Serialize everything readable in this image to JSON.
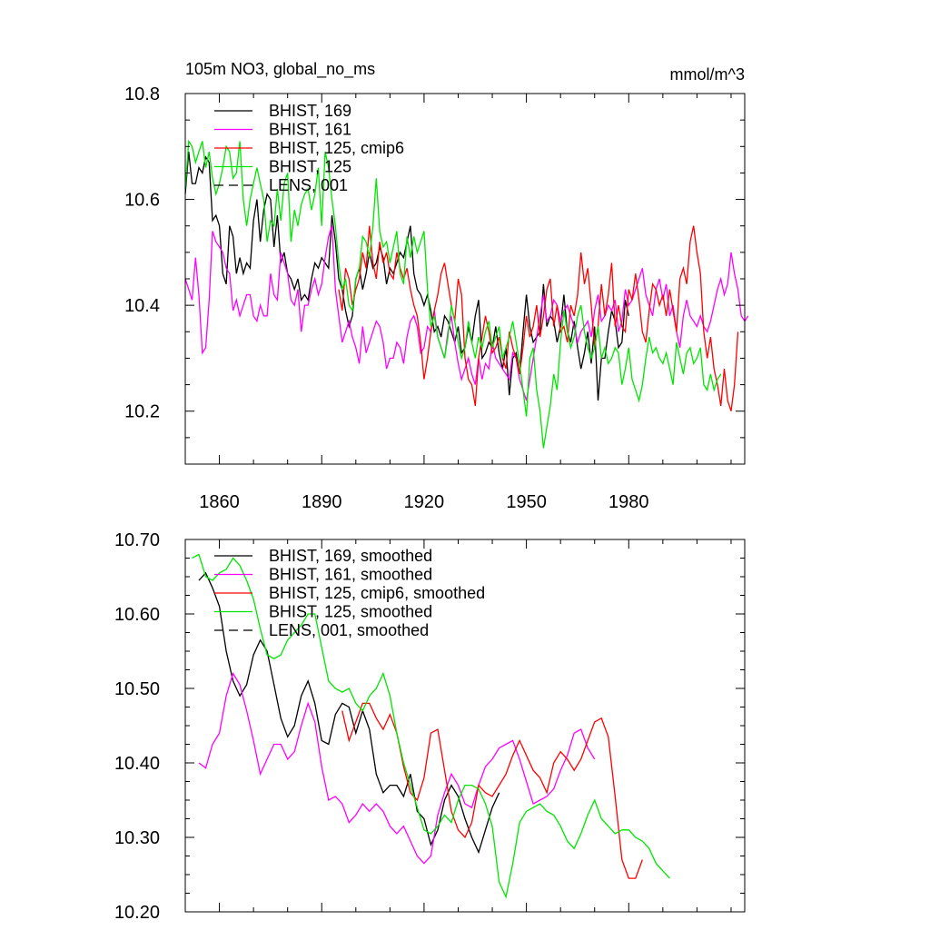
{
  "chart_data": [
    {
      "type": "line",
      "title": "105m NO3, global_no_ms",
      "units": "mmol/m^3",
      "xlim": [
        1850,
        2014
      ],
      "ylim": [
        10.1,
        10.8
      ],
      "xticks": [
        1860,
        1890,
        1920,
        1950,
        1980
      ],
      "xtick_labels": [
        "1860",
        "1890",
        "1920",
        "1950",
        "1980"
      ],
      "yticks": [
        10.2,
        10.4,
        10.6,
        10.8
      ],
      "ytick_labels": [
        "10.2",
        "10.4",
        "10.6",
        "10.8"
      ],
      "legend": [
        {
          "label": "BHIST, 169",
          "color": "#000000",
          "dash": false
        },
        {
          "label": "BHIST, 161",
          "color": "#ff00ff",
          "dash": false
        },
        {
          "label": "BHIST, 125, cmip6",
          "color": "#ff0000",
          "dash": false
        },
        {
          "label": "BHIST, 125",
          "color": "#00e600",
          "dash": false
        },
        {
          "label": "LENS, 001",
          "color": "#000000",
          "dash": true
        }
      ],
      "series": [
        {
          "name": "BHIST, 169",
          "color": "#000000",
          "x_start": 1850,
          "step": 1,
          "values": [
            10.61,
            10.69,
            10.63,
            10.63,
            10.66,
            10.65,
            10.68,
            10.67,
            10.56,
            10.57,
            10.55,
            10.46,
            10.44,
            10.55,
            10.53,
            10.46,
            10.49,
            10.46,
            10.48,
            10.47,
            10.56,
            10.6,
            10.52,
            10.58,
            10.61,
            10.6,
            10.51,
            10.57,
            10.48,
            10.5,
            10.46,
            10.45,
            10.43,
            10.45,
            10.41,
            10.42,
            10.41,
            10.45,
            10.48,
            10.47,
            10.49,
            10.48,
            10.47,
            10.57,
            10.52,
            10.45,
            10.43,
            10.39,
            10.36,
            10.38,
            10.45,
            10.47,
            10.43,
            10.46,
            10.5,
            10.47,
            10.48,
            10.51,
            10.49,
            10.44,
            10.47,
            10.46,
            10.48,
            10.5,
            10.49,
            10.52,
            10.55,
            10.46,
            10.43,
            10.42,
            10.4,
            10.42,
            10.39,
            10.35,
            10.36,
            10.34,
            10.38,
            10.37,
            10.35,
            10.33,
            10.36,
            10.31,
            10.32,
            10.36,
            10.33,
            10.38,
            10.41,
            10.3,
            10.31,
            10.33,
            10.32,
            10.36,
            10.31,
            10.28,
            10.32,
            10.23,
            10.3,
            10.31,
            10.27,
            10.35,
            10.42,
            10.36,
            10.33,
            10.34,
            10.35,
            10.44,
            10.36,
            10.38,
            10.37,
            10.33,
            10.36,
            10.42,
            10.35,
            10.33,
            10.37,
            10.32,
            10.28,
            10.31,
            10.35,
            10.29,
            10.36,
            10.22,
            10.3,
            10.3,
            10.35,
            10.39,
            10.37,
            10.32,
            10.33,
            10.41,
            10.38
          ]
        },
        {
          "name": "BHIST, 161",
          "color": "#ff00ff",
          "x_start": 1850,
          "step": 1,
          "values": [
            10.45,
            10.43,
            10.41,
            10.49,
            10.42,
            10.31,
            10.32,
            10.41,
            10.54,
            10.52,
            10.51,
            10.5,
            10.47,
            10.46,
            10.39,
            10.41,
            10.38,
            10.4,
            10.42,
            10.42,
            10.38,
            10.37,
            10.4,
            10.38,
            10.38,
            10.46,
            10.42,
            10.41,
            10.5,
            10.48,
            10.46,
            10.41,
            10.4,
            10.43,
            10.35,
            10.4,
            10.4,
            10.43,
            10.45,
            10.42,
            10.44,
            10.49,
            10.53,
            10.55,
            10.43,
            10.38,
            10.33,
            10.35,
            10.37,
            10.34,
            10.32,
            10.29,
            10.36,
            10.31,
            10.33,
            10.35,
            10.37,
            10.36,
            10.33,
            10.28,
            10.3,
            10.3,
            10.33,
            10.32,
            10.29,
            10.34,
            10.37,
            10.38,
            10.36,
            10.31,
            10.32,
            10.36,
            10.35,
            10.39,
            10.34,
            10.32,
            10.3,
            10.35,
            10.38,
            10.33,
            10.29,
            10.26,
            10.28,
            10.3,
            10.27,
            10.25,
            10.3,
            10.26,
            10.29,
            10.28,
            10.33,
            10.3,
            10.29,
            10.28,
            10.27,
            10.26,
            10.31,
            10.3,
            10.26,
            10.24,
            10.22,
            10.26,
            10.3,
            10.34,
            10.38,
            10.42,
            10.37,
            10.38,
            10.41,
            10.4,
            10.37,
            10.39,
            10.4,
            10.38,
            10.36,
            10.33,
            10.35,
            10.36,
            10.37,
            10.34,
            10.39,
            10.42,
            10.37,
            10.38,
            10.4,
            10.39,
            10.41,
            10.35,
            10.37,
            10.43,
            10.4,
            10.41,
            10.43,
            10.45,
            10.47,
            10.42,
            10.4,
            10.38,
            10.43,
            10.45,
            10.41,
            10.44,
            10.38,
            10.4,
            10.35,
            10.32,
            10.38,
            10.41,
            10.38,
            10.37,
            10.36,
            10.38,
            10.36,
            10.35,
            10.37,
            10.4,
            10.43,
            10.45,
            10.42,
            10.44,
            10.5,
            10.46,
            10.43,
            10.38,
            10.37,
            10.38
          ]
        },
        {
          "name": "BHIST, 125, cmip6",
          "color": "#ff0000",
          "x_start": 1895,
          "step": 1,
          "values": [
            10.43,
            10.39,
            10.47,
            10.45,
            10.4,
            10.43,
            10.45,
            10.5,
            10.47,
            10.55,
            10.48,
            10.45,
            10.52,
            10.48,
            10.5,
            10.46,
            10.45,
            10.5,
            10.47,
            10.45,
            10.47,
            10.43,
            10.4,
            10.38,
            10.33,
            10.26,
            10.3,
            10.35,
            10.39,
            10.42,
            10.46,
            10.48,
            10.44,
            10.4,
            10.37,
            10.45,
            10.42,
            10.3,
            10.26,
            10.25,
            10.21,
            10.3,
            10.34,
            10.38,
            10.35,
            10.31,
            10.32,
            10.34,
            10.3,
            10.28,
            10.35,
            10.32,
            10.3,
            10.27,
            10.32,
            10.38,
            10.34,
            10.36,
            10.4,
            10.34,
            10.38,
            10.43,
            10.45,
            10.36,
            10.4,
            10.35,
            10.36,
            10.33,
            10.4,
            10.38,
            10.42,
            10.5,
            10.44,
            10.47,
            10.4,
            10.32,
            10.36,
            10.44,
            10.38,
            10.42,
            10.48,
            10.36,
            10.4,
            10.36,
            10.35,
            10.43,
            10.41,
            10.46,
            10.41,
            10.35,
            10.33,
            10.39,
            10.44,
            10.43,
            10.4,
            10.42,
            10.38,
            10.43,
            10.39,
            10.35,
            10.45,
            10.47,
            10.44,
            10.52,
            10.55,
            10.5,
            10.46,
            10.35,
            10.3,
            10.34,
            10.28,
            10.25,
            10.21,
            10.28,
            10.22,
            10.2,
            10.25,
            10.35
          ]
        },
        {
          "name": "BHIST, 125",
          "color": "#00e600",
          "x_start": 1850,
          "step": 1,
          "values": [
            10.62,
            10.71,
            10.7,
            10.67,
            10.69,
            10.71,
            10.66,
            10.69,
            10.64,
            10.61,
            10.63,
            10.66,
            10.7,
            10.69,
            10.64,
            10.65,
            10.71,
            10.6,
            10.55,
            10.6,
            10.63,
            10.66,
            10.63,
            10.6,
            10.52,
            10.56,
            10.55,
            10.62,
            10.56,
            10.63,
            10.65,
            10.52,
            10.58,
            10.55,
            10.59,
            10.61,
            10.62,
            10.58,
            10.61,
            10.66,
            10.55,
            10.69,
            10.66,
            10.6,
            10.55,
            10.48,
            10.43,
            10.45,
            10.4,
            10.39,
            10.45,
            10.47,
            10.53,
            10.52,
            10.49,
            10.55,
            10.64,
            10.54,
            10.51,
            10.52,
            10.48,
            10.51,
            10.54,
            10.46,
            10.44,
            10.53,
            10.49,
            10.53,
            10.5,
            10.52,
            10.54,
            10.43,
            10.36,
            10.38,
            10.34,
            10.32,
            10.3,
            10.34,
            10.4,
            10.37,
            10.33,
            10.3,
            10.32,
            10.37,
            10.33,
            10.3,
            10.34,
            10.32,
            10.35,
            10.37,
            10.32,
            10.34,
            10.36,
            10.3,
            10.32,
            10.34,
            10.37,
            10.33,
            10.29,
            10.24,
            10.19,
            10.3,
            10.32,
            10.24,
            10.2,
            10.13,
            10.17,
            10.21,
            10.27,
            10.24,
            10.33,
            10.39,
            10.35,
            10.32,
            10.34,
            10.38,
            10.4,
            10.35,
            10.32,
            10.3,
            10.32,
            10.36,
            10.3,
            10.32,
            10.29,
            10.3,
            10.32,
            10.31,
            10.25,
            10.28,
            10.32,
            10.26,
            10.24,
            10.22,
            10.25,
            10.3,
            10.34,
            10.31,
            10.32,
            10.3,
            10.29,
            10.31,
            10.28,
            10.25,
            10.33,
            10.3,
            10.27,
            10.31,
            10.32,
            10.29,
            10.3,
            10.32,
            10.25,
            10.24,
            10.27,
            10.24,
            10.26,
            10.27
          ]
        },
        {
          "name": "LENS, 001",
          "color": "#000000",
          "dash": true,
          "values": []
        }
      ]
    },
    {
      "type": "line",
      "title": "",
      "xlim": [
        1850,
        2014
      ],
      "ylim": [
        10.2,
        10.7
      ],
      "xticks": [
        1860,
        1890,
        1920,
        1950,
        1980
      ],
      "yticks": [
        10.2,
        10.3,
        10.4,
        10.5,
        10.6,
        10.7
      ],
      "ytick_labels": [
        "10.20",
        "10.30",
        "10.40",
        "10.50",
        "10.60",
        "10.70"
      ],
      "legend": [
        {
          "label": "BHIST, 169, smoothed",
          "color": "#000000",
          "dash": false
        },
        {
          "label": "BHIST, 161, smoothed",
          "color": "#ff00ff",
          "dash": false
        },
        {
          "label": "BHIST, 125, cmip6, smoothed",
          "color": "#ff0000",
          "dash": false
        },
        {
          "label": "BHIST, 125, smoothed",
          "color": "#00e600",
          "dash": false
        },
        {
          "label": "LENS, 001, smoothed",
          "color": "#000000",
          "dash": true
        }
      ],
      "series": [
        {
          "name": "BHIST, 169, smoothed",
          "color": "#000000",
          "x_start": 1854,
          "step": 2,
          "values": [
            10.645,
            10.655,
            10.635,
            10.61,
            10.55,
            10.51,
            10.49,
            10.505,
            10.545,
            10.565,
            10.55,
            10.505,
            10.46,
            10.435,
            10.45,
            10.49,
            10.51,
            10.48,
            10.43,
            10.425,
            10.465,
            10.48,
            10.475,
            10.44,
            10.47,
            10.445,
            10.385,
            10.36,
            10.37,
            10.37,
            10.355,
            10.385,
            10.335,
            10.325,
            10.29,
            10.31,
            10.35,
            10.37,
            10.355,
            10.325,
            10.3,
            10.28,
            10.31,
            10.34,
            10.36
          ]
        },
        {
          "name": "BHIST, 161, smoothed",
          "color": "#ff00ff",
          "x_start": 1854,
          "step": 2,
          "values": [
            10.4,
            10.393,
            10.425,
            10.44,
            10.49,
            10.52,
            10.505,
            10.47,
            10.43,
            10.385,
            10.405,
            10.425,
            10.425,
            10.405,
            10.415,
            10.45,
            10.48,
            10.455,
            10.395,
            10.35,
            10.355,
            10.345,
            10.32,
            10.33,
            10.345,
            10.335,
            10.345,
            10.335,
            10.315,
            10.305,
            10.315,
            10.295,
            10.275,
            10.265,
            10.275,
            10.33,
            10.36,
            10.385,
            10.37,
            10.345,
            10.34,
            10.37,
            10.395,
            10.405,
            10.42,
            10.425,
            10.43,
            10.405,
            10.375,
            10.345,
            10.35,
            10.355,
            10.365,
            10.39,
            10.41,
            10.44,
            10.445,
            10.42,
            10.405
          ]
        },
        {
          "name": "BHIST, 125, cmip6, smoothed",
          "color": "#ff0000",
          "x_start": 1896,
          "step": 2,
          "values": [
            10.47,
            10.43,
            10.455,
            10.48,
            10.48,
            10.46,
            10.445,
            10.465,
            10.44,
            10.395,
            10.36,
            10.35,
            10.38,
            10.44,
            10.445,
            10.39,
            10.335,
            10.31,
            10.3,
            10.32,
            10.37,
            10.36,
            10.355,
            10.37,
            10.385,
            10.41,
            10.43,
            10.41,
            10.39,
            10.38,
            10.36,
            10.4,
            10.415,
            10.405,
            10.39,
            10.405,
            10.43,
            10.455,
            10.46,
            10.435,
            10.355,
            10.27,
            10.245,
            10.245,
            10.27
          ]
        },
        {
          "name": "BHIST, 125, smoothed",
          "color": "#00e600",
          "x_start": 1852,
          "step": 2,
          "values": [
            10.675,
            10.68,
            10.65,
            10.645,
            10.655,
            10.66,
            10.675,
            10.665,
            10.645,
            10.62,
            10.58,
            10.545,
            10.54,
            10.545,
            10.565,
            10.575,
            10.585,
            10.6,
            10.6,
            10.555,
            10.51,
            10.5,
            10.495,
            10.5,
            10.48,
            10.47,
            10.49,
            10.5,
            10.52,
            10.49,
            10.44,
            10.4,
            10.37,
            10.34,
            10.31,
            10.305,
            10.315,
            10.33,
            10.32,
            10.35,
            10.37,
            10.37,
            10.365,
            10.345,
            10.315,
            10.24,
            10.22,
            10.265,
            10.32,
            10.335,
            10.34,
            10.345,
            10.335,
            10.33,
            10.315,
            10.295,
            10.285,
            10.305,
            10.33,
            10.35,
            10.325,
            10.315,
            10.305,
            10.31,
            10.31,
            10.3,
            10.295,
            10.285,
            10.265,
            10.255,
            10.245
          ]
        },
        {
          "name": "LENS, 001, smoothed",
          "color": "#000000",
          "dash": true,
          "values": []
        }
      ]
    }
  ]
}
